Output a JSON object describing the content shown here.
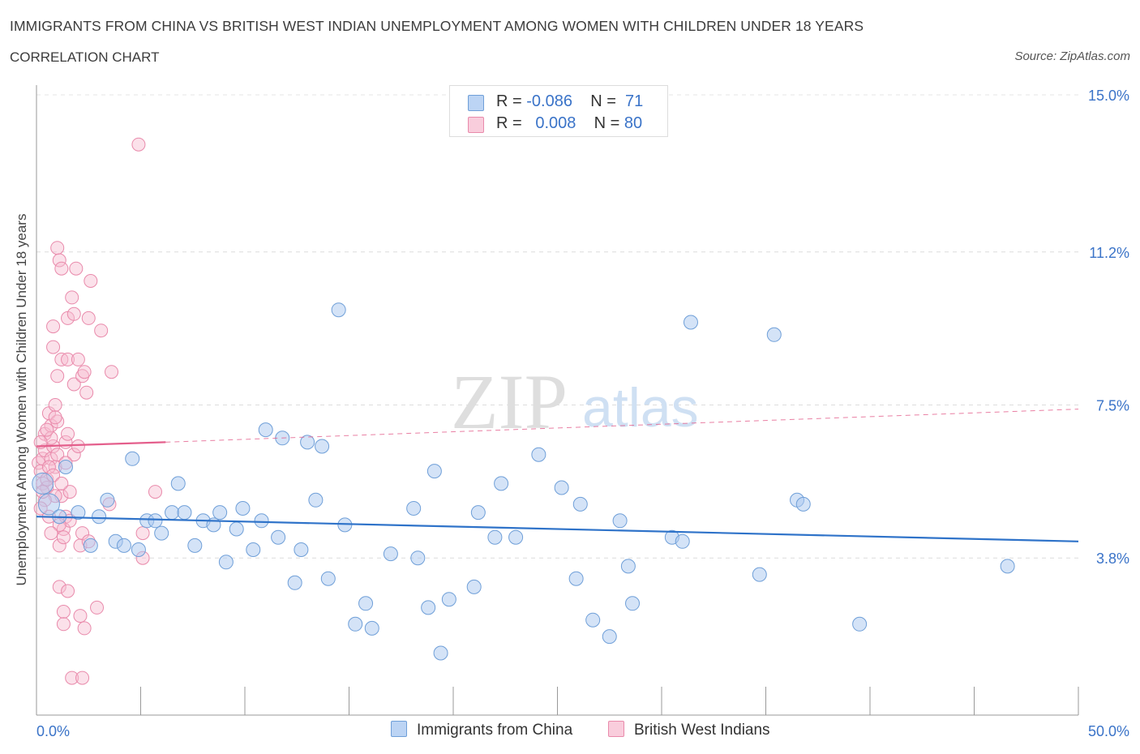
{
  "header": {
    "title": "IMMIGRANTS FROM CHINA VS BRITISH WEST INDIAN UNEMPLOYMENT AMONG WOMEN WITH CHILDREN UNDER 18 YEARS",
    "subtitle": "CORRELATION CHART",
    "source": "Source: ZipAtlas.com"
  },
  "watermark": {
    "zip": "ZIP",
    "atlas": "atlas"
  },
  "colors": {
    "china": "#a9c8f0",
    "china_stroke": "#6f9fd8",
    "china_line": "#2f73c9",
    "bwi": "#f6bcd0",
    "bwi_stroke": "#e98aab",
    "bwi_line": "#e45f8c",
    "accent_text": "#3a73c8"
  },
  "legend": {
    "row1": {
      "r_label": "R = ",
      "r_value": "-0.086",
      "n_label": "N = ",
      "n_value": "71"
    },
    "row2": {
      "r_label": "R = ",
      "r_value": "0.008",
      "n_label": "N = ",
      "n_value": "80"
    }
  },
  "bottom_legend": {
    "china": "Immigrants from China",
    "bwi": "British West Indians"
  },
  "chart_data": {
    "type": "scatter",
    "ylabel": "Unemployment Among Women with Children Under 18 years",
    "xlim": [
      0,
      50
    ],
    "ylim": [
      0,
      15
    ],
    "x_tick_labels": [
      "0.0%",
      "50.0%"
    ],
    "y_ticks": [
      3.8,
      7.5,
      11.2,
      15.0
    ],
    "y_tick_labels": [
      "3.8%",
      "7.5%",
      "11.2%",
      "15.0%"
    ],
    "grid": true,
    "series": [
      {
        "name": "Immigrants from China",
        "trend": {
          "x": [
            0,
            50
          ],
          "y": [
            4.8,
            4.2
          ],
          "dashed_from": null
        },
        "points": [
          [
            0.3,
            5.6
          ],
          [
            0.6,
            5.1
          ],
          [
            1.4,
            6.0
          ],
          [
            1.1,
            4.8
          ],
          [
            2.0,
            4.9
          ],
          [
            2.6,
            4.1
          ],
          [
            3.0,
            4.8
          ],
          [
            3.4,
            5.2
          ],
          [
            3.8,
            4.2
          ],
          [
            4.2,
            4.1
          ],
          [
            4.6,
            6.2
          ],
          [
            4.9,
            4.0
          ],
          [
            5.3,
            4.7
          ],
          [
            5.7,
            4.7
          ],
          [
            6.0,
            4.4
          ],
          [
            6.5,
            4.9
          ],
          [
            6.8,
            5.6
          ],
          [
            7.1,
            4.9
          ],
          [
            7.6,
            4.1
          ],
          [
            8.0,
            4.7
          ],
          [
            8.5,
            4.6
          ],
          [
            8.8,
            4.9
          ],
          [
            9.1,
            3.7
          ],
          [
            9.6,
            4.5
          ],
          [
            9.9,
            5.0
          ],
          [
            10.4,
            4.0
          ],
          [
            10.8,
            4.7
          ],
          [
            11.0,
            6.9
          ],
          [
            11.6,
            4.3
          ],
          [
            11.8,
            6.7
          ],
          [
            12.4,
            3.2
          ],
          [
            12.7,
            4.0
          ],
          [
            13.0,
            6.6
          ],
          [
            13.4,
            5.2
          ],
          [
            13.7,
            6.5
          ],
          [
            14.0,
            3.3
          ],
          [
            14.5,
            9.8
          ],
          [
            14.8,
            4.6
          ],
          [
            15.3,
            2.2
          ],
          [
            15.8,
            2.7
          ],
          [
            16.1,
            2.1
          ],
          [
            17.0,
            3.9
          ],
          [
            18.1,
            5.0
          ],
          [
            18.3,
            3.8
          ],
          [
            18.8,
            2.6
          ],
          [
            19.1,
            5.9
          ],
          [
            19.4,
            1.5
          ],
          [
            19.8,
            2.8
          ],
          [
            21.0,
            3.1
          ],
          [
            21.2,
            4.9
          ],
          [
            22.0,
            4.3
          ],
          [
            22.3,
            5.6
          ],
          [
            23.0,
            4.3
          ],
          [
            24.1,
            6.3
          ],
          [
            25.2,
            5.5
          ],
          [
            25.9,
            3.3
          ],
          [
            26.1,
            5.1
          ],
          [
            26.7,
            2.3
          ],
          [
            27.5,
            1.9
          ],
          [
            28.0,
            4.7
          ],
          [
            28.4,
            3.6
          ],
          [
            28.6,
            2.7
          ],
          [
            30.5,
            4.3
          ],
          [
            31.0,
            4.2
          ],
          [
            31.4,
            9.5
          ],
          [
            34.7,
            3.4
          ],
          [
            35.4,
            9.2
          ],
          [
            36.5,
            5.2
          ],
          [
            36.8,
            5.1
          ],
          [
            39.5,
            2.2
          ],
          [
            46.6,
            3.6
          ]
        ]
      },
      {
        "name": "British West Indians",
        "trend": {
          "x": [
            0,
            6.2,
            50
          ],
          "y": [
            6.5,
            6.6,
            7.4
          ],
          "dashed_from": 6.2
        },
        "points": [
          [
            0.1,
            6.1
          ],
          [
            0.2,
            5.9
          ],
          [
            0.3,
            5.6
          ],
          [
            0.3,
            6.2
          ],
          [
            0.4,
            6.4
          ],
          [
            0.4,
            6.8
          ],
          [
            0.5,
            5.5
          ],
          [
            0.6,
            7.3
          ],
          [
            0.6,
            4.8
          ],
          [
            0.7,
            6.2
          ],
          [
            0.7,
            7.0
          ],
          [
            0.8,
            6.5
          ],
          [
            0.8,
            8.9
          ],
          [
            0.8,
            9.4
          ],
          [
            0.9,
            7.5
          ],
          [
            0.9,
            6.0
          ],
          [
            1.0,
            7.1
          ],
          [
            1.0,
            8.2
          ],
          [
            1.0,
            11.3
          ],
          [
            1.1,
            4.1
          ],
          [
            1.1,
            3.1
          ],
          [
            1.1,
            11.0
          ],
          [
            1.2,
            10.8
          ],
          [
            1.2,
            8.6
          ],
          [
            1.2,
            5.3
          ],
          [
            1.3,
            2.5
          ],
          [
            1.3,
            4.5
          ],
          [
            1.3,
            4.3
          ],
          [
            1.3,
            2.2
          ],
          [
            1.4,
            4.8
          ],
          [
            1.4,
            6.6
          ],
          [
            1.5,
            3.0
          ],
          [
            1.5,
            9.6
          ],
          [
            1.5,
            8.6
          ],
          [
            1.6,
            5.4
          ],
          [
            1.7,
            10.1
          ],
          [
            1.7,
            0.9
          ],
          [
            1.8,
            9.7
          ],
          [
            1.8,
            8.0
          ],
          [
            1.8,
            6.3
          ],
          [
            1.9,
            10.8
          ],
          [
            2.0,
            8.6
          ],
          [
            2.0,
            6.5
          ],
          [
            2.1,
            4.1
          ],
          [
            2.1,
            2.4
          ],
          [
            2.2,
            8.2
          ],
          [
            2.2,
            4.4
          ],
          [
            2.2,
            0.9
          ],
          [
            2.3,
            8.3
          ],
          [
            2.3,
            2.1
          ],
          [
            2.4,
            7.8
          ],
          [
            2.5,
            9.6
          ],
          [
            2.6,
            10.5
          ],
          [
            2.9,
            2.6
          ],
          [
            3.1,
            9.3
          ],
          [
            3.5,
            5.1
          ],
          [
            3.6,
            8.3
          ],
          [
            4.9,
            13.8
          ],
          [
            5.1,
            4.4
          ],
          [
            5.1,
            3.8
          ],
          [
            5.7,
            5.4
          ],
          [
            0.5,
            5.7
          ],
          [
            0.7,
            6.7
          ],
          [
            0.9,
            5.3
          ],
          [
            1.6,
            4.7
          ],
          [
            2.5,
            4.2
          ],
          [
            0.2,
            6.6
          ],
          [
            0.4,
            5.2
          ],
          [
            0.6,
            6.0
          ],
          [
            0.8,
            5.8
          ],
          [
            1.0,
            6.3
          ],
          [
            1.2,
            5.6
          ],
          [
            1.4,
            6.1
          ],
          [
            0.3,
            5.4
          ],
          [
            0.5,
            6.9
          ],
          [
            0.9,
            7.2
          ],
          [
            1.1,
            4.6
          ],
          [
            1.5,
            6.8
          ],
          [
            0.2,
            5.0
          ],
          [
            0.7,
            4.4
          ]
        ]
      }
    ]
  }
}
